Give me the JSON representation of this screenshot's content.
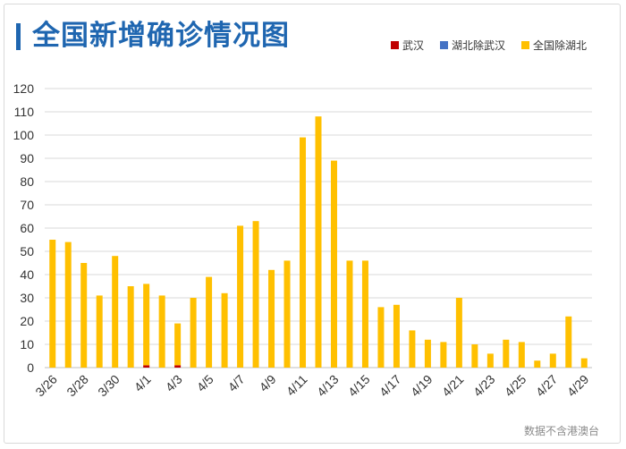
{
  "chart_data": {
    "type": "bar",
    "stacked": true,
    "title": "全国新增确诊情况图",
    "categories": [
      "3/26",
      "3/27",
      "3/28",
      "3/29",
      "3/30",
      "3/31",
      "4/1",
      "4/2",
      "4/3",
      "4/4",
      "4/5",
      "4/6",
      "4/7",
      "4/8",
      "4/9",
      "4/10",
      "4/11",
      "4/12",
      "4/13",
      "4/14",
      "4/15",
      "4/16",
      "4/17",
      "4/18",
      "4/19",
      "4/20",
      "4/21",
      "4/22",
      "4/23",
      "4/24",
      "4/25",
      "4/26",
      "4/27",
      "4/28",
      "4/29"
    ],
    "tick_labels": [
      "3/26",
      "3/28",
      "3/30",
      "4/1",
      "4/3",
      "4/5",
      "4/7",
      "4/9",
      "4/11",
      "4/13",
      "4/15",
      "4/17",
      "4/19",
      "4/21",
      "4/23",
      "4/25",
      "4/27",
      "4/29"
    ],
    "series": [
      {
        "name": "武汉",
        "color": "#c00000",
        "values": [
          0,
          0,
          0,
          0,
          0,
          0,
          1,
          0,
          1,
          0,
          0,
          0,
          0,
          0,
          0,
          0,
          0,
          0,
          0,
          0,
          0,
          0,
          0,
          0,
          0,
          0,
          0,
          0,
          0,
          0,
          0,
          0,
          0,
          0,
          0
        ]
      },
      {
        "name": "湖北除武汉",
        "color": "#4472c4",
        "values": [
          0,
          0,
          0,
          0,
          0,
          0,
          0,
          0,
          0,
          0,
          0,
          0,
          0,
          0,
          0,
          0,
          0,
          0,
          0,
          0,
          0,
          0,
          0,
          0,
          0,
          0,
          0,
          0,
          0,
          0,
          0,
          0,
          0,
          0,
          0
        ]
      },
      {
        "name": "全国除湖北",
        "color": "#ffc000",
        "values": [
          55,
          54,
          45,
          31,
          48,
          35,
          35,
          31,
          18,
          30,
          39,
          32,
          61,
          63,
          42,
          46,
          99,
          108,
          89,
          46,
          46,
          26,
          27,
          16,
          12,
          11,
          30,
          10,
          6,
          12,
          11,
          3,
          6,
          22,
          4
        ]
      }
    ],
    "ylim": [
      0,
      120
    ],
    "yticks": [
      0,
      10,
      20,
      30,
      40,
      50,
      60,
      70,
      80,
      90,
      100,
      110,
      120
    ],
    "grid": true,
    "legend_position": "top-right"
  },
  "footer": {
    "note": "数据不含港澳台"
  }
}
